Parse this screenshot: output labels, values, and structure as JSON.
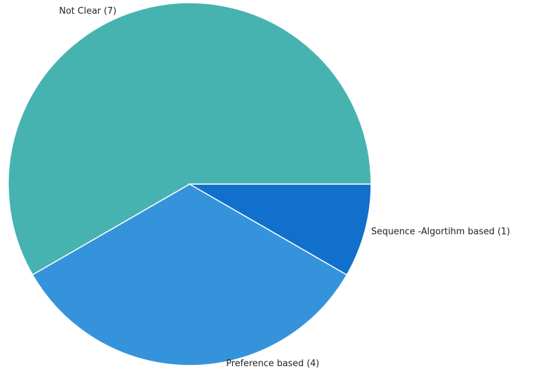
{
  "chart_data": {
    "type": "pie",
    "slices": [
      {
        "label": "Not Clear (7)",
        "value": 7,
        "color": "#47B3B1"
      },
      {
        "label": "Sequence -Algortihm based (1)",
        "value": 1,
        "color": "#1170CB"
      },
      {
        "label": "Preference based (4)",
        "value": 4,
        "color": "#3593DC"
      }
    ],
    "start_angle_deg": 0,
    "direction": "clockwise"
  }
}
